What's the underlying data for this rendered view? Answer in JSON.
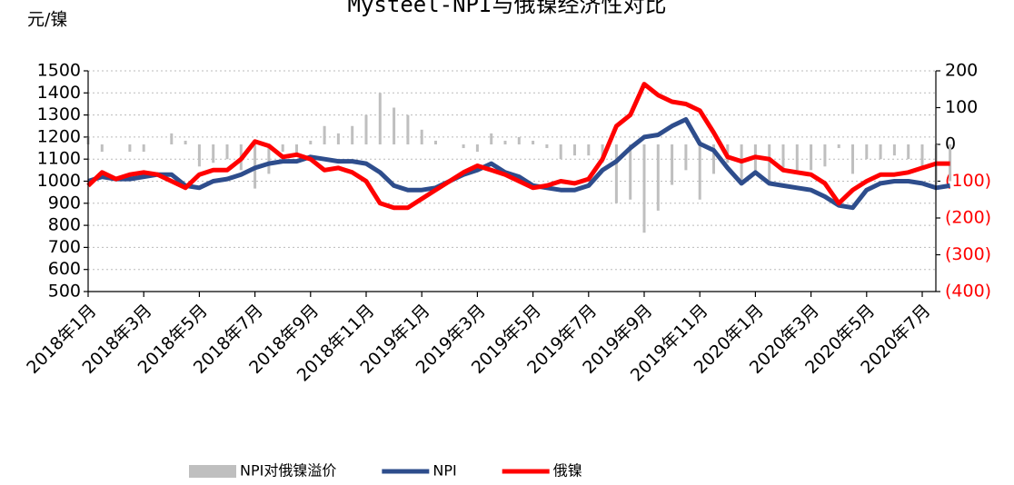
{
  "chart_data": {
    "type": "line",
    "title": "Mysteel-NPI与俄镍经济性对比",
    "y_label": "元/镍",
    "categories": [
      "2018年1月",
      null,
      null,
      null,
      "2018年3月",
      null,
      null,
      null,
      "2018年5月",
      null,
      null,
      null,
      "2018年7月",
      null,
      null,
      null,
      "2018年9月",
      null,
      null,
      null,
      "2018年11月",
      null,
      null,
      null,
      "2019年1月",
      null,
      null,
      null,
      "2019年3月",
      null,
      null,
      null,
      "2019年5月",
      null,
      null,
      null,
      "2019年7月",
      null,
      null,
      null,
      "2019年9月",
      null,
      null,
      null,
      "2019年11月",
      null,
      null,
      null,
      "2020年1月",
      null,
      null,
      null,
      "2020年3月",
      null,
      null,
      null,
      "2020年5月",
      null,
      null,
      null,
      "2020年7月",
      null,
      null
    ],
    "series": [
      {
        "name": "NPI对俄镍溢价",
        "type": "bar",
        "axis": "y2",
        "color": "#bfbfbf",
        "values": [
          20,
          -20,
          0,
          -20,
          -20,
          0,
          30,
          10,
          -60,
          -50,
          -40,
          -70,
          -120,
          -80,
          -20,
          -30,
          10,
          50,
          30,
          50,
          80,
          140,
          100,
          80,
          40,
          10,
          0,
          -10,
          -20,
          30,
          10,
          20,
          10,
          -10,
          -40,
          -30,
          -30,
          -50,
          -160,
          -150,
          -240,
          -180,
          -110,
          -70,
          -150,
          -80,
          -50,
          -100,
          -70,
          -110,
          -70,
          -70,
          -70,
          -60,
          -10,
          -80,
          -40,
          -40,
          -30,
          -40,
          -70,
          -110,
          -100
        ]
      },
      {
        "name": "NPI",
        "type": "line",
        "color": "#2e4d8c",
        "values": [
          1000,
          1020,
          1010,
          1010,
          1020,
          1030,
          1030,
          980,
          970,
          1000,
          1010,
          1030,
          1060,
          1080,
          1090,
          1090,
          1110,
          1100,
          1090,
          1090,
          1080,
          1040,
          980,
          960,
          960,
          970,
          1000,
          1030,
          1050,
          1080,
          1040,
          1020,
          980,
          970,
          960,
          960,
          980,
          1050,
          1090,
          1150,
          1200,
          1210,
          1250,
          1280,
          1170,
          1140,
          1060,
          990,
          1040,
          990,
          980,
          970,
          960,
          930,
          890,
          880,
          960,
          990,
          1000,
          1000,
          990,
          970,
          980
        ]
      },
      {
        "name": "俄镍",
        "type": "line",
        "color": "#ff0000",
        "values": [
          980,
          1040,
          1010,
          1030,
          1040,
          1030,
          1000,
          970,
          1030,
          1050,
          1050,
          1100,
          1180,
          1160,
          1110,
          1120,
          1100,
          1050,
          1060,
          1040,
          1000,
          900,
          880,
          880,
          920,
          960,
          1000,
          1040,
          1070,
          1050,
          1030,
          1000,
          970,
          980,
          1000,
          990,
          1010,
          1100,
          1250,
          1300,
          1440,
          1390,
          1360,
          1350,
          1320,
          1220,
          1110,
          1090,
          1110,
          1100,
          1050,
          1040,
          1030,
          990,
          900,
          960,
          1000,
          1030,
          1030,
          1040,
          1060,
          1080,
          1080
        ]
      }
    ],
    "ylim": [
      500,
      1500
    ],
    "yticks": [
      500,
      600,
      700,
      800,
      900,
      1000,
      1100,
      1200,
      1300,
      1400,
      1500
    ],
    "y2lim": [
      -400,
      200
    ],
    "y2ticks": [
      {
        "value": -400,
        "label": "(400)"
      },
      {
        "value": -300,
        "label": "(300)"
      },
      {
        "value": -200,
        "label": "(200)"
      },
      {
        "value": -100,
        "label": "(100)"
      },
      0,
      100,
      200
    ],
    "y2_negative_color": "#ff0000",
    "grid": true,
    "legend": "bottom"
  }
}
